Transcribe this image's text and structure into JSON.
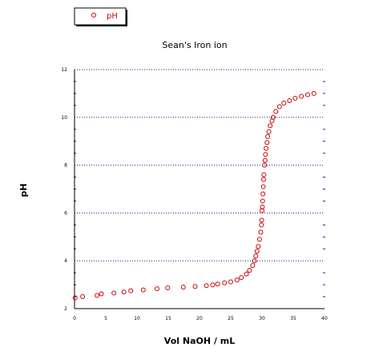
{
  "chart_data": {
    "type": "scatter",
    "title": "Sean's Iron ion",
    "xlabel": "Vol NaOH / mL",
    "ylabel": "pH",
    "xlim": [
      0,
      40
    ],
    "ylim": [
      2,
      12
    ],
    "x_ticks": [
      "0",
      "5",
      "10",
      "15",
      "20",
      "25",
      "30",
      "35",
      "40"
    ],
    "y_ticks": [
      "2",
      "4",
      "6",
      "8",
      "10",
      "12"
    ],
    "grid": "horizontal dotted",
    "legend": "top-left",
    "series": [
      {
        "name": "pH",
        "color": "#cc0000",
        "marker": "open-circle",
        "points": [
          [
            0.1,
            2.45
          ],
          [
            1.3,
            2.5
          ],
          [
            3.6,
            2.55
          ],
          [
            4.3,
            2.62
          ],
          [
            6.3,
            2.65
          ],
          [
            7.9,
            2.7
          ],
          [
            9.0,
            2.75
          ],
          [
            11.0,
            2.78
          ],
          [
            13.2,
            2.83
          ],
          [
            14.9,
            2.87
          ],
          [
            17.4,
            2.9
          ],
          [
            19.3,
            2.93
          ],
          [
            21.1,
            2.96
          ],
          [
            22.1,
            2.99
          ],
          [
            22.9,
            3.03
          ],
          [
            24.0,
            3.08
          ],
          [
            25.0,
            3.12
          ],
          [
            26.0,
            3.2
          ],
          [
            26.7,
            3.3
          ],
          [
            27.5,
            3.45
          ],
          [
            28.0,
            3.6
          ],
          [
            28.5,
            3.8
          ],
          [
            28.8,
            4.0
          ],
          [
            29.0,
            4.2
          ],
          [
            29.2,
            4.4
          ],
          [
            29.4,
            4.6
          ],
          [
            29.6,
            4.9
          ],
          [
            29.8,
            5.2
          ],
          [
            29.9,
            5.5
          ],
          [
            29.95,
            5.7
          ],
          [
            30.0,
            6.1
          ],
          [
            30.05,
            6.25
          ],
          [
            30.1,
            6.5
          ],
          [
            30.15,
            6.8
          ],
          [
            30.2,
            7.1
          ],
          [
            30.25,
            7.4
          ],
          [
            30.3,
            7.6
          ],
          [
            30.4,
            8.0
          ],
          [
            30.5,
            8.2
          ],
          [
            30.55,
            8.45
          ],
          [
            30.65,
            8.7
          ],
          [
            30.8,
            8.95
          ],
          [
            30.9,
            9.2
          ],
          [
            31.1,
            9.4
          ],
          [
            31.3,
            9.65
          ],
          [
            31.6,
            9.85
          ],
          [
            31.8,
            10.0
          ],
          [
            32.2,
            10.25
          ],
          [
            32.8,
            10.45
          ],
          [
            33.5,
            10.6
          ],
          [
            34.4,
            10.7
          ],
          [
            35.3,
            10.8
          ],
          [
            36.3,
            10.88
          ],
          [
            37.3,
            10.95
          ],
          [
            38.3,
            11.0
          ]
        ]
      }
    ]
  }
}
